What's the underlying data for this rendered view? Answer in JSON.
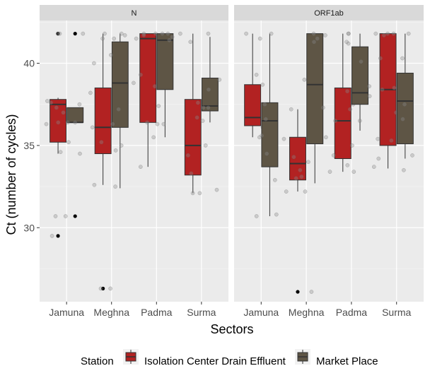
{
  "chart_data": {
    "type": "boxplot",
    "xlabel": "Sectors",
    "ylabel": "Ct (number of cycles)",
    "ylim": [
      25.5,
      42.6
    ],
    "yticks": [
      30,
      35,
      40
    ],
    "categories": [
      "Jamuna",
      "Meghna",
      "Padma",
      "Surma"
    ],
    "legend": {
      "title": "Station",
      "position": "bottom",
      "entries": [
        {
          "name": "Isolation Center Drain Effluent",
          "color": "#B22222"
        },
        {
          "name": "Market Place",
          "color": "#5E5545"
        }
      ]
    },
    "panels": [
      {
        "title": "N",
        "groups": [
          {
            "category": "Jamuna",
            "series": "Isolation Center Drain Effluent",
            "q1": 35.2,
            "median": 37.5,
            "q3": 37.8,
            "whisker_low": 34.5,
            "whisker_high": 37.9,
            "outliers": [
              41.8,
              29.5
            ],
            "points": [
              41.8,
              41.8,
              37.7,
              37.6,
              37.3,
              36.4,
              36.3,
              35.2,
              34.6,
              30.7,
              29.5
            ]
          },
          {
            "category": "Jamuna",
            "series": "Market Place",
            "q1": 36.4,
            "median": 36.4,
            "q3": 37.3,
            "whisker_low": 36.4,
            "whisker_high": 37.3,
            "outliers": [
              41.8,
              30.7
            ],
            "points": [
              41.8,
              37.5,
              37.0,
              36.4,
              36.4,
              34.5,
              30.7
            ]
          },
          {
            "category": "Meghna",
            "series": "Isolation Center Drain Effluent",
            "q1": 34.5,
            "median": 36.1,
            "q3": 38.5,
            "whisker_low": 32.6,
            "whisker_high": 41.8,
            "outliers": [
              26.3
            ],
            "points": [
              41.8,
              41.5,
              40.0,
              38.2,
              37.5,
              36.7,
              36.1,
              35.2,
              34.7,
              32.6,
              26.3
            ]
          },
          {
            "category": "Meghna",
            "series": "Market Place",
            "q1": 36.1,
            "median": 38.8,
            "q3": 41.3,
            "whisker_low": 32.4,
            "whisker_high": 41.8,
            "outliers": [],
            "points": [
              41.8,
              41.7,
              41.5,
              40.5,
              38.8,
              37.2,
              36.3,
              35.0,
              32.5,
              26.3
            ]
          },
          {
            "category": "Padma",
            "series": "Isolation Center Drain Effluent",
            "q1": 36.4,
            "median": 41.5,
            "q3": 41.8,
            "whisker_low": 33.7,
            "whisker_high": 41.8,
            "outliers": [],
            "points": [
              41.8,
              41.8,
              41.7,
              41.5,
              40.4,
              39.3,
              37.4,
              36.4,
              33.7
            ]
          },
          {
            "category": "Padma",
            "series": "Market Place",
            "q1": 38.4,
            "median": 41.4,
            "q3": 41.8,
            "whisker_low": 35.5,
            "whisker_high": 41.8,
            "outliers": [],
            "points": [
              41.8,
              41.8,
              41.6,
              41.4,
              38.6,
              36.3,
              36.3,
              35.5
            ]
          },
          {
            "category": "Surma",
            "series": "Isolation Center Drain Effluent",
            "q1": 33.2,
            "median": 35.0,
            "q3": 37.8,
            "whisker_low": 32.1,
            "whisker_high": 41.8,
            "outliers": [],
            "points": [
              41.8,
              41.3,
              37.6,
              36.7,
              35.0,
              34.4,
              33.3,
              32.1
            ]
          },
          {
            "category": "Surma",
            "series": "Market Place",
            "q1": 37.1,
            "median": 37.4,
            "q3": 39.1,
            "whisker_low": 36.4,
            "whisker_high": 41.6,
            "outliers": [],
            "points": [
              41.8,
              39.0,
              38.4,
              37.3,
              37.3,
              36.5,
              32.3,
              32.1
            ]
          }
        ]
      },
      {
        "title": "ORF1ab",
        "groups": [
          {
            "category": "Jamuna",
            "series": "Isolation Center Drain Effluent",
            "q1": 36.2,
            "median": 36.7,
            "q3": 38.7,
            "whisker_low": 35.5,
            "whisker_high": 41.8,
            "outliers": [],
            "points": [
              41.8,
              41.5,
              38.7,
              37.5,
              36.8,
              36.1,
              35.5,
              30.7
            ]
          },
          {
            "category": "Jamuna",
            "series": "Market Place",
            "q1": 33.7,
            "median": 36.5,
            "q3": 37.6,
            "whisker_low": 30.7,
            "whisker_high": 41.8,
            "outliers": [],
            "points": [
              41.8,
              39.3,
              37.5,
              36.6,
              35.6,
              34.5,
              32.9,
              30.8
            ]
          },
          {
            "category": "Meghna",
            "series": "Isolation Center Drain Effluent",
            "q1": 32.9,
            "median": 33.9,
            "q3": 35.5,
            "whisker_low": 32.2,
            "whisker_high": 37.2,
            "outliers": [
              26.1
            ],
            "points": [
              37.2,
              36.6,
              35.4,
              34.3,
              33.5,
              33.0,
              32.2,
              26.1
            ]
          },
          {
            "category": "Meghna",
            "series": "Market Place",
            "q1": 35.1,
            "median": 38.7,
            "q3": 41.8,
            "whisker_low": 32.7,
            "whisker_high": 41.8,
            "outliers": [],
            "points": [
              41.8,
              41.7,
              41.5,
              41.3,
              39.0,
              37.3,
              35.5,
              34.0,
              33.1,
              32.2
            ]
          },
          {
            "category": "Padma",
            "series": "Isolation Center Drain Effluent",
            "q1": 34.2,
            "median": 36.5,
            "q3": 38.5,
            "whisker_low": 33.4,
            "whisker_high": 41.8,
            "outliers": [],
            "points": [
              41.8,
              41.2,
              38.3,
              37.5,
              36.5,
              35.0,
              34.4,
              33.4
            ]
          },
          {
            "category": "Padma",
            "series": "Market Place",
            "q1": 37.5,
            "median": 38.2,
            "q3": 41.0,
            "whisker_low": 35.9,
            "whisker_high": 41.8,
            "outliers": [],
            "points": [
              41.8,
              41.3,
              40.1,
              38.6,
              38.0,
              37.2,
              36.5,
              33.8,
              33.4
            ]
          },
          {
            "category": "Surma",
            "series": "Isolation Center Drain Effluent",
            "q1": 35.0,
            "median": 38.4,
            "q3": 41.8,
            "whisker_low": 33.6,
            "whisker_high": 41.8,
            "outliers": [],
            "points": [
              41.8,
              41.8,
              41.7,
              40.3,
              38.4,
              37.0,
              35.4,
              34.2,
              33.7
            ]
          },
          {
            "category": "Surma",
            "series": "Market Place",
            "q1": 35.1,
            "median": 37.7,
            "q3": 39.4,
            "whisker_low": 34.2,
            "whisker_high": 41.8,
            "outliers": [],
            "points": [
              41.8,
              41.8,
              40.3,
              38.5,
              37.5,
              36.6,
              35.3,
              34.4,
              33.5
            ]
          }
        ]
      }
    ]
  }
}
